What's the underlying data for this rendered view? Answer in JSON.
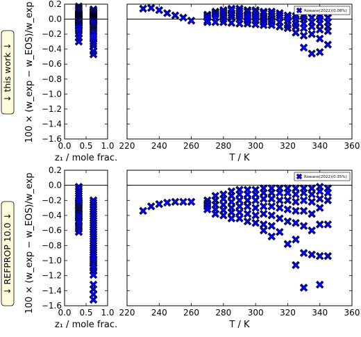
{
  "figure": {
    "row_labels": [
      "↓ this work ↓",
      "↓ REFPROP 10.0 ↓"
    ],
    "ylabel": "100 × (w_exp − w_EOS)/w_exp"
  },
  "chart_data": [
    {
      "type": "scatter",
      "panel": "this work — composition",
      "xlabel": "z₁ / mole frac.",
      "ylabel": "100 × (w_exp − w_EOS)/w_exp",
      "xlim": [
        0.0,
        1.0
      ],
      "ylim": [
        -1.6,
        0.2
      ],
      "xticks": [
        "0.0",
        "0.5",
        "1.0"
      ],
      "yticks": [
        "0.2",
        "0.0",
        "−0.2",
        "−0.4",
        "−0.6",
        "−0.8",
        "−1.0",
        "−1.2",
        "−1.4",
        "−1.6"
      ],
      "hline": 0.0,
      "marker": "x",
      "color": "#0000ff",
      "series": [
        {
          "x": [
            0.33,
            0.33,
            0.33,
            0.33,
            0.33,
            0.33,
            0.33,
            0.33,
            0.33,
            0.33,
            0.33,
            0.33,
            0.33,
            0.33,
            0.33,
            0.33,
            0.33,
            0.33,
            0.33,
            0.33,
            0.33,
            0.33,
            0.33,
            0.33,
            0.33,
            0.33,
            0.33
          ],
          "y": [
            0.17,
            0.15,
            0.13,
            0.11,
            0.09,
            0.07,
            0.06,
            0.05,
            0.04,
            0.03,
            0.02,
            0.01,
            0.0,
            -0.01,
            -0.02,
            -0.03,
            -0.05,
            -0.06,
            -0.08,
            -0.09,
            -0.1,
            -0.12,
            -0.14,
            -0.16,
            -0.2,
            -0.25,
            -0.3
          ]
        },
        {
          "x": [
            0.67,
            0.67,
            0.67,
            0.67,
            0.67,
            0.67,
            0.67,
            0.67,
            0.67,
            0.67,
            0.67,
            0.67,
            0.67,
            0.67,
            0.67,
            0.67,
            0.67,
            0.67,
            0.67,
            0.67,
            0.67,
            0.67,
            0.67,
            0.67,
            0.67,
            0.67,
            0.67,
            0.67,
            0.67,
            0.67
          ],
          "y": [
            0.13,
            0.11,
            0.1,
            0.09,
            0.08,
            0.06,
            0.05,
            0.04,
            0.03,
            0.02,
            0.01,
            0.0,
            -0.01,
            -0.02,
            -0.03,
            -0.04,
            -0.06,
            -0.08,
            -0.1,
            -0.12,
            -0.14,
            -0.16,
            -0.18,
            -0.22,
            -0.26,
            -0.3,
            -0.33,
            -0.36,
            -0.43,
            -0.47
          ]
        }
      ]
    },
    {
      "type": "scatter",
      "panel": "this work — temperature",
      "xlabel": "T / K",
      "xlim": [
        220,
        360
      ],
      "ylim": [
        -1.6,
        0.2
      ],
      "xticks": [
        "220",
        "240",
        "260",
        "280",
        "300",
        "320",
        "340",
        "360"
      ],
      "hline": 0.0,
      "marker": "x",
      "color": "#0000ff",
      "legend": {
        "label": "Rowane(2022)(0.08%)",
        "position": "top-right"
      },
      "series": [
        {
          "name": "Rowane(2022)(0.08%)",
          "x": [
            230,
            235,
            240,
            245,
            250,
            255,
            260,
            270,
            270,
            270,
            270,
            270,
            275,
            275,
            275,
            275,
            275,
            280,
            280,
            280,
            280,
            280,
            280,
            285,
            285,
            285,
            285,
            285,
            285,
            290,
            290,
            290,
            290,
            290,
            290,
            295,
            295,
            295,
            295,
            295,
            295,
            300,
            300,
            300,
            300,
            300,
            300,
            305,
            305,
            305,
            305,
            305,
            305,
            310,
            310,
            310,
            310,
            310,
            310,
            315,
            315,
            315,
            315,
            315,
            320,
            320,
            320,
            320,
            320,
            325,
            325,
            325,
            325,
            325,
            330,
            330,
            330,
            330,
            330,
            330,
            335,
            335,
            335,
            335,
            335,
            340,
            340,
            340,
            340,
            340,
            340,
            345,
            345,
            345,
            345,
            345
          ],
          "y": [
            0.14,
            0.15,
            0.12,
            0.08,
            0.05,
            0.02,
            -0.02,
            0.06,
            0.04,
            0.02,
            -0.02,
            -0.04,
            0.1,
            0.08,
            0.06,
            0.02,
            -0.04,
            0.12,
            0.1,
            0.08,
            0.04,
            0.0,
            -0.04,
            0.14,
            0.12,
            0.08,
            0.05,
            0.02,
            -0.05,
            0.14,
            0.11,
            0.08,
            0.04,
            0.0,
            -0.06,
            0.12,
            0.1,
            0.06,
            0.02,
            -0.02,
            -0.06,
            0.12,
            0.1,
            0.06,
            0.02,
            -0.02,
            -0.07,
            0.1,
            0.08,
            0.04,
            0.0,
            -0.04,
            -0.08,
            0.1,
            0.07,
            0.04,
            0.0,
            -0.04,
            -0.08,
            0.08,
            0.05,
            0.02,
            -0.04,
            -0.1,
            0.05,
            0.02,
            -0.02,
            -0.08,
            -0.12,
            0.04,
            0.0,
            -0.06,
            -0.1,
            -0.18,
            0.04,
            0.0,
            -0.06,
            -0.12,
            -0.22,
            -0.38,
            0.02,
            -0.04,
            -0.1,
            -0.2,
            -0.46,
            0.04,
            0.0,
            -0.06,
            -0.14,
            -0.26,
            -0.44,
            0.02,
            -0.04,
            -0.1,
            -0.16,
            -0.34
          ]
        }
      ]
    },
    {
      "type": "scatter",
      "panel": "REFPROP 10.0 — composition",
      "xlabel": "z₁ / mole frac.",
      "ylabel": "100 × (w_exp − w_EOS)/w_exp",
      "xlim": [
        0.0,
        1.0
      ],
      "ylim": [
        -1.6,
        0.2
      ],
      "xticks": [
        "0.0",
        "0.5",
        "1.0"
      ],
      "yticks": [
        "0.2",
        "0.0",
        "−0.2",
        "−0.4",
        "−0.6",
        "−0.8",
        "−1.0",
        "−1.2",
        "−1.4",
        "−1.6"
      ],
      "hline": 0.0,
      "marker": "x",
      "color": "#0000ff",
      "series": [
        {
          "x": [
            0.33,
            0.33,
            0.33,
            0.33,
            0.33,
            0.33,
            0.33,
            0.33,
            0.33,
            0.33,
            0.33,
            0.33,
            0.33,
            0.33,
            0.33,
            0.33,
            0.33,
            0.33,
            0.33,
            0.33,
            0.33,
            0.33,
            0.33,
            0.33
          ],
          "y": [
            -0.02,
            -0.05,
            -0.08,
            -0.11,
            -0.14,
            -0.17,
            -0.2,
            -0.22,
            -0.24,
            -0.26,
            -0.28,
            -0.3,
            -0.32,
            -0.34,
            -0.36,
            -0.38,
            -0.4,
            -0.42,
            -0.44,
            -0.47,
            -0.5,
            -0.54,
            -0.58,
            -0.62
          ]
        },
        {
          "x": [
            0.67,
            0.67,
            0.67,
            0.67,
            0.67,
            0.67,
            0.67,
            0.67,
            0.67,
            0.67,
            0.67,
            0.67,
            0.67,
            0.67,
            0.67,
            0.67,
            0.67,
            0.67,
            0.67,
            0.67,
            0.67,
            0.67,
            0.67,
            0.67,
            0.67,
            0.67,
            0.67,
            0.67,
            0.67,
            0.67,
            0.67,
            0.67,
            0.67,
            0.67,
            0.67,
            0.67
          ],
          "y": [
            -0.2,
            -0.23,
            -0.26,
            -0.29,
            -0.32,
            -0.35,
            -0.38,
            -0.41,
            -0.44,
            -0.47,
            -0.5,
            -0.53,
            -0.56,
            -0.59,
            -0.62,
            -0.65,
            -0.68,
            -0.71,
            -0.74,
            -0.77,
            -0.8,
            -0.83,
            -0.86,
            -0.89,
            -0.92,
            -0.95,
            -0.99,
            -1.03,
            -1.07,
            -1.1,
            -1.14,
            -1.19,
            -1.32,
            -1.38,
            -1.45,
            -1.52
          ]
        }
      ]
    },
    {
      "type": "scatter",
      "panel": "REFPROP 10.0 — temperature",
      "xlabel": "T / K",
      "xlim": [
        220,
        360
      ],
      "ylim": [
        -1.6,
        0.2
      ],
      "xticks": [
        "220",
        "240",
        "260",
        "280",
        "300",
        "320",
        "340",
        "360"
      ],
      "hline": 0.0,
      "marker": "x",
      "color": "#0000ff",
      "legend": {
        "label": "Rowane(2022)(0.35%)",
        "position": "top-right"
      },
      "series": [
        {
          "name": "Rowane(2022)(0.35%)",
          "x": [
            230,
            235,
            240,
            245,
            250,
            255,
            260,
            270,
            270,
            270,
            270,
            275,
            275,
            275,
            275,
            275,
            280,
            280,
            280,
            280,
            280,
            285,
            285,
            285,
            285,
            285,
            285,
            290,
            290,
            290,
            290,
            290,
            290,
            295,
            295,
            295,
            295,
            295,
            295,
            300,
            300,
            300,
            300,
            300,
            300,
            305,
            305,
            305,
            305,
            305,
            305,
            305,
            310,
            310,
            310,
            310,
            310,
            310,
            310,
            315,
            315,
            315,
            315,
            315,
            315,
            320,
            320,
            320,
            320,
            320,
            320,
            325,
            325,
            325,
            325,
            325,
            325,
            325,
            330,
            330,
            330,
            330,
            330,
            330,
            330,
            335,
            335,
            335,
            335,
            335,
            335,
            340,
            340,
            340,
            340,
            340,
            340,
            340,
            345,
            345,
            345,
            345,
            345
          ],
          "y": [
            -0.34,
            -0.28,
            -0.25,
            -0.23,
            -0.22,
            -0.22,
            -0.22,
            -0.2,
            -0.24,
            -0.28,
            -0.32,
            -0.14,
            -0.2,
            -0.26,
            -0.32,
            -0.38,
            -0.12,
            -0.18,
            -0.26,
            -0.33,
            -0.4,
            -0.08,
            -0.14,
            -0.22,
            -0.3,
            -0.36,
            -0.44,
            -0.06,
            -0.12,
            -0.2,
            -0.28,
            -0.36,
            -0.44,
            -0.06,
            -0.12,
            -0.2,
            -0.28,
            -0.38,
            -0.48,
            -0.06,
            -0.12,
            -0.2,
            -0.3,
            -0.4,
            -0.5,
            -0.04,
            -0.1,
            -0.18,
            -0.28,
            -0.38,
            -0.52,
            -0.6,
            -0.04,
            -0.1,
            -0.18,
            -0.28,
            -0.4,
            -0.54,
            -0.68,
            -0.04,
            -0.1,
            -0.2,
            -0.3,
            -0.44,
            -0.62,
            -0.04,
            -0.1,
            -0.2,
            -0.32,
            -0.48,
            -0.78,
            -0.04,
            -0.12,
            -0.22,
            -0.34,
            -0.5,
            -0.72,
            -1.06,
            -0.04,
            -0.1,
            -0.2,
            -0.34,
            -0.54,
            -0.9,
            -1.36,
            -0.04,
            -0.12,
            -0.22,
            -0.38,
            -0.6,
            -0.92,
            -0.02,
            -0.08,
            -0.18,
            -0.3,
            -0.52,
            -0.94,
            -1.32,
            -0.04,
            -0.1,
            -0.2,
            -0.52,
            -0.94
          ]
        }
      ]
    }
  ]
}
